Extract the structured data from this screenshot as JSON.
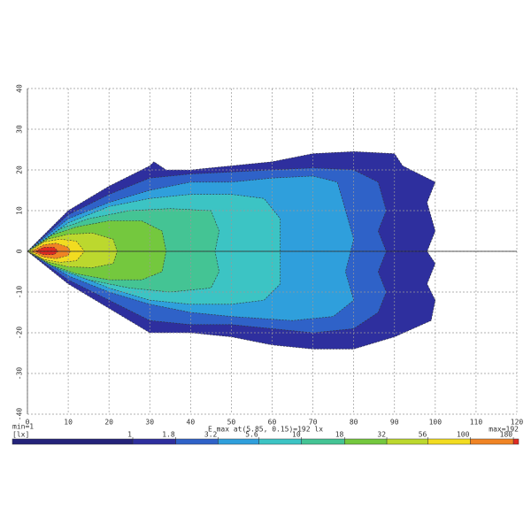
{
  "chart_data": {
    "type": "contour",
    "xlim": [
      0,
      120
    ],
    "xticks": [
      0,
      10,
      20,
      30,
      40,
      50,
      60,
      70,
      80,
      90,
      100,
      110,
      120
    ],
    "ylim": [
      -40,
      40
    ],
    "yticks": [
      -40,
      -30,
      -20,
      -10,
      0,
      10,
      20,
      30,
      40
    ],
    "grid": true,
    "min_label": "min=1",
    "unit_label": "[lx]",
    "emax_label": "E max at(5.85, 0.15)=192 lx",
    "max_label": "max=192",
    "colorbar_ticks": [
      1,
      1.8,
      3.2,
      5.6,
      10,
      18,
      32,
      56,
      100,
      180
    ],
    "contours": [
      {
        "color": "#2e2f9e",
        "x": [
          0,
          10,
          20,
          30,
          31,
          34,
          40,
          50,
          60,
          70,
          80,
          90,
          92,
          100,
          98,
          100,
          98,
          100,
          98,
          100,
          99,
          90,
          80,
          70,
          60,
          50,
          40,
          30,
          20,
          10
        ],
        "y": [
          0,
          10,
          16,
          21,
          22,
          20,
          20,
          21,
          22,
          24,
          24.5,
          24,
          21,
          17,
          12,
          5,
          0,
          -3,
          -8,
          -12,
          -17,
          -21,
          -24,
          -24,
          -23,
          -21,
          -20,
          -20,
          -14,
          -8
        ]
      },
      {
        "color": "#2f62c8",
        "x": [
          0,
          10,
          20,
          30,
          40,
          50,
          60,
          70,
          80,
          86,
          88,
          86,
          88,
          86,
          88,
          86,
          80,
          70,
          60,
          50,
          40,
          30,
          20,
          10
        ],
        "y": [
          0,
          9,
          14,
          18,
          19,
          19.5,
          20,
          20.5,
          20,
          17,
          10,
          5,
          0,
          -5,
          -10,
          -15,
          -19,
          -20,
          -19,
          -18,
          -18,
          -17,
          -12,
          -7
        ]
      },
      {
        "color": "#2f9fdc",
        "x": [
          0,
          10,
          20,
          30,
          40,
          50,
          60,
          70,
          76,
          78,
          80,
          78,
          80,
          75,
          65,
          50,
          40,
          30,
          20,
          10
        ],
        "y": [
          0,
          8,
          12,
          15,
          17,
          17,
          18,
          18.5,
          17,
          10,
          3,
          -5,
          -12,
          -16,
          -17,
          -16,
          -15,
          -13,
          -10,
          -6
        ]
      },
      {
        "color": "#3cc4c4",
        "x": [
          0,
          10,
          20,
          30,
          40,
          50,
          58,
          62,
          62,
          62,
          58,
          50,
          40,
          30,
          20,
          10
        ],
        "y": [
          0,
          7,
          11,
          13,
          14,
          14,
          13,
          8,
          0,
          -8,
          -12,
          -13,
          -13,
          -12,
          -9,
          -5
        ]
      },
      {
        "color": "#44c494",
        "x": [
          0,
          8,
          15,
          25,
          35,
          45,
          47,
          46,
          47,
          45,
          35,
          25,
          15,
          8
        ],
        "y": [
          0,
          5.5,
          8,
          10,
          10.5,
          10,
          5,
          0,
          -5,
          -9,
          -10,
          -9,
          -7,
          -4.5
        ]
      },
      {
        "color": "#74c83e",
        "x": [
          0,
          6,
          12,
          20,
          28,
          33,
          34,
          33,
          28,
          20,
          12,
          6
        ],
        "y": [
          0,
          4,
          6,
          7.5,
          7.5,
          5,
          0,
          -5,
          -7,
          -7,
          -5.5,
          -3.5
        ]
      },
      {
        "color": "#bcd82e",
        "x": [
          0,
          5,
          10,
          16,
          21,
          22,
          21,
          16,
          10,
          5
        ],
        "y": [
          0,
          3,
          4.2,
          4.5,
          3,
          0,
          -3,
          -4,
          -3.8,
          -2.6
        ]
      },
      {
        "color": "#f2dc20",
        "x": [
          0.5,
          4,
          8,
          12,
          14,
          12,
          8,
          4
        ],
        "y": [
          0,
          2.3,
          3,
          2.5,
          0,
          -2.3,
          -2.7,
          -2
        ]
      },
      {
        "color": "#f08424",
        "x": [
          1,
          4,
          7,
          10,
          10.5,
          10,
          7,
          4
        ],
        "y": [
          0,
          1.6,
          2,
          1,
          0,
          -1,
          -1.8,
          -1.4
        ]
      },
      {
        "color": "#e02a22",
        "x": [
          2,
          4,
          6.5,
          7.5,
          6.5,
          4
        ],
        "y": [
          0,
          1,
          1,
          0,
          -0.8,
          -0.8
        ]
      }
    ]
  }
}
